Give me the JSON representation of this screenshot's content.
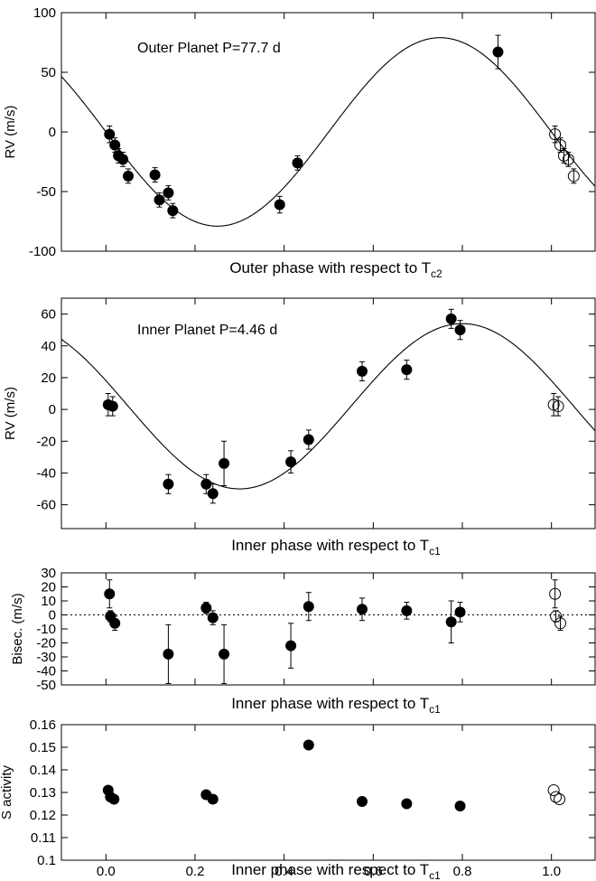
{
  "chart_data": [
    {
      "type": "scatter",
      "panel": "outer-rv",
      "annotation": "Outer Planet P=77.7 d",
      "xlabel": "Outer phase with respect to T",
      "xlabel_sub": "c2",
      "ylabel": "RV (m/s)",
      "xlim": [
        -0.1,
        1.1
      ],
      "ylim": [
        -100,
        100
      ],
      "xticks": [],
      "yticks": [
        -100,
        -50,
        0,
        50,
        100
      ],
      "model": {
        "amplitude": 79,
        "phase_of_max": 0.75,
        "period": 1.0
      },
      "series": [
        {
          "marker": "filled",
          "x": [
            0.008,
            0.02,
            0.028,
            0.038,
            0.05,
            0.11,
            0.12,
            0.14,
            0.15,
            0.39,
            0.43,
            0.88
          ],
          "y": [
            -2,
            -11,
            -20,
            -23,
            -37,
            -36,
            -57,
            -51,
            -66,
            -61,
            -26,
            67
          ],
          "err": [
            7,
            6,
            6,
            6,
            6,
            6,
            6,
            6,
            6,
            7,
            6,
            14
          ]
        },
        {
          "marker": "open",
          "x": [
            1.008,
            1.02,
            1.028,
            1.038,
            1.05
          ],
          "y": [
            -2,
            -11,
            -20,
            -23,
            -37
          ],
          "err": [
            7,
            6,
            6,
            6,
            6
          ]
        }
      ]
    },
    {
      "type": "scatter",
      "panel": "inner-rv",
      "annotation": "Inner Planet P=4.46 d",
      "xlabel": "Inner phase with respect to T",
      "xlabel_sub": "c1",
      "ylabel": "RV (m/s)",
      "xlim": [
        -0.1,
        1.1
      ],
      "ylim": [
        -75,
        70
      ],
      "xticks": [],
      "yticks": [
        -60,
        -40,
        -20,
        0,
        20,
        40,
        60
      ],
      "model": {
        "amplitude": 52,
        "offset": 2,
        "phase_of_max": 0.8,
        "period": 1.0
      },
      "series": [
        {
          "marker": "filled",
          "x": [
            0.005,
            0.015,
            0.14,
            0.225,
            0.24,
            0.265,
            0.415,
            0.455,
            0.575,
            0.675,
            0.775,
            0.795
          ],
          "y": [
            3,
            2,
            -47,
            -47,
            -53,
            -34,
            -33,
            -19,
            24,
            25,
            57,
            50
          ],
          "err": [
            7,
            6,
            6,
            6,
            6,
            14,
            7,
            6,
            6,
            6,
            6,
            6
          ]
        },
        {
          "marker": "open",
          "x": [
            1.005,
            1.015
          ],
          "y": [
            3,
            2
          ],
          "err": [
            7,
            6
          ]
        }
      ]
    },
    {
      "type": "scatter",
      "panel": "bisector",
      "xlabel": "Inner phase with respect to T",
      "xlabel_sub": "c1",
      "ylabel": "Bisec. (m/s)",
      "xlim": [
        -0.1,
        1.1
      ],
      "ylim": [
        -50,
        30
      ],
      "xticks": [],
      "yticks": [
        -50,
        -40,
        -30,
        -20,
        -10,
        0,
        10,
        20,
        30
      ],
      "reference_line": 0,
      "series": [
        {
          "marker": "filled",
          "x": [
            0.008,
            0.01,
            0.02,
            0.14,
            0.225,
            0.24,
            0.265,
            0.415,
            0.455,
            0.575,
            0.675,
            0.775,
            0.795
          ],
          "y": [
            15,
            -1,
            -6,
            -28,
            5,
            -2,
            -28,
            -22,
            6,
            4,
            3,
            -5,
            2
          ],
          "err": [
            10,
            4,
            5,
            21,
            4,
            5,
            21,
            16,
            10,
            8,
            6,
            15,
            7
          ]
        },
        {
          "marker": "open",
          "x": [
            1.008,
            1.01,
            1.02
          ],
          "y": [
            15,
            -1,
            -6
          ],
          "err": [
            10,
            4,
            5
          ]
        }
      ]
    },
    {
      "type": "scatter",
      "panel": "s-activity",
      "xlabel": "Inner phase with respect to T",
      "xlabel_sub": "c1",
      "ylabel": "S activity",
      "xlim": [
        -0.1,
        1.1
      ],
      "ylim": [
        0.1,
        0.16
      ],
      "xticks": [
        0.0,
        0.2,
        0.4,
        0.6,
        0.8,
        1.0
      ],
      "xticklabels": [
        "0.0",
        "0.2",
        "0.4",
        "0.6",
        "0.8",
        "1.0"
      ],
      "yticks": [
        0.1,
        0.11,
        0.12,
        0.13,
        0.14,
        0.15,
        0.16
      ],
      "yticklabels": [
        "0.1",
        "0.11",
        "0.12",
        "0.13",
        "0.14",
        "0.15",
        "0.16"
      ],
      "series": [
        {
          "marker": "filled",
          "x": [
            0.005,
            0.01,
            0.018,
            0.225,
            0.24,
            0.455,
            0.575,
            0.675,
            0.795
          ],
          "y": [
            0.131,
            0.128,
            0.127,
            0.129,
            0.127,
            0.151,
            0.126,
            0.125,
            0.124
          ]
        },
        {
          "marker": "open",
          "x": [
            1.005,
            1.01,
            1.018
          ],
          "y": [
            0.131,
            0.128,
            0.127
          ]
        }
      ]
    }
  ]
}
